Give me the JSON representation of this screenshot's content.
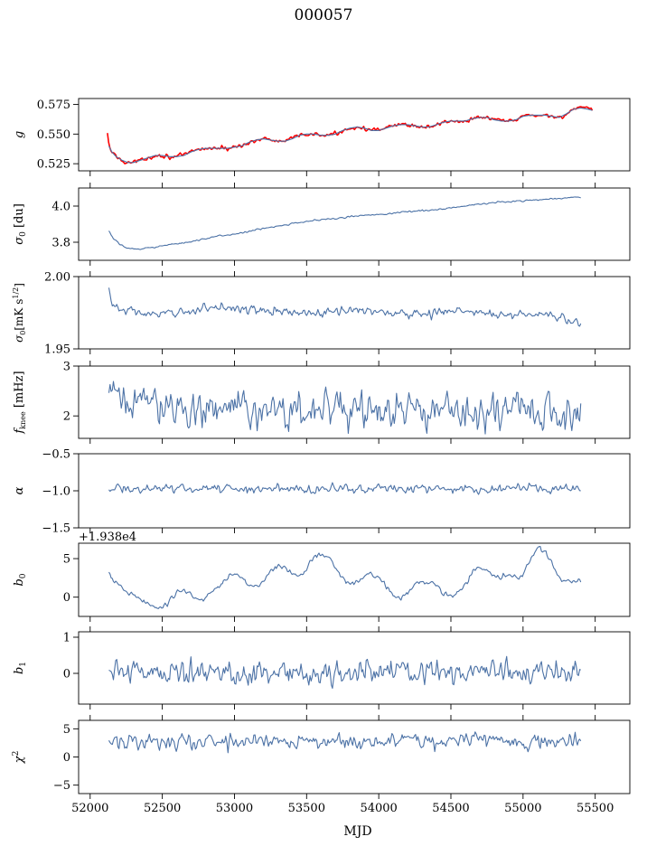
{
  "figure": {
    "title": "000057",
    "xlabel": "MJD",
    "series_color": "#4c72a6",
    "fit_color": "#ff0000"
  },
  "chart_data": [
    {
      "type": "line",
      "ylabel": "g",
      "xlim": [
        51920,
        55740
      ],
      "ylim": [
        0.519,
        0.58
      ],
      "xticks": [
        52000,
        52500,
        53000,
        53500,
        54000,
        54500,
        55000,
        55500
      ],
      "yticks": [
        0.525,
        0.55,
        0.575
      ],
      "ytick_labels": [
        "0.525",
        "0.550",
        "0.575"
      ],
      "series": [
        {
          "color": "#ff0000",
          "style": "noisy",
          "noise": 0.0012,
          "x": [
            52120,
            52130,
            52150,
            52180,
            52220,
            52260,
            52300,
            52350,
            52400,
            52450,
            52500,
            52550,
            52600,
            52650,
            52700,
            52750,
            52800,
            52850,
            52900,
            52950,
            53000,
            53050,
            53100,
            53150,
            53200,
            53250,
            53300,
            53350,
            53400,
            53450,
            53500,
            53550,
            53600,
            53650,
            53700,
            53750,
            53800,
            53850,
            53900,
            53950,
            54000,
            54050,
            54100,
            54150,
            54200,
            54250,
            54300,
            54350,
            54400,
            54450,
            54500,
            54550,
            54600,
            54650,
            54700,
            54750,
            54800,
            54850,
            54900,
            54950,
            55000,
            55050,
            55100,
            55150,
            55200,
            55250,
            55300,
            55350,
            55400,
            55450,
            55480
          ],
          "y": [
            0.55,
            0.54,
            0.535,
            0.531,
            0.528,
            0.526,
            0.526,
            0.528,
            0.53,
            0.532,
            0.532,
            0.531,
            0.531,
            0.532,
            0.535,
            0.537,
            0.538,
            0.538,
            0.538,
            0.538,
            0.539,
            0.54,
            0.543,
            0.545,
            0.546,
            0.545,
            0.544,
            0.544,
            0.546,
            0.549,
            0.55,
            0.55,
            0.549,
            0.549,
            0.55,
            0.553,
            0.555,
            0.556,
            0.555,
            0.553,
            0.553,
            0.555,
            0.557,
            0.558,
            0.558,
            0.557,
            0.556,
            0.556,
            0.558,
            0.56,
            0.561,
            0.561,
            0.561,
            0.563,
            0.564,
            0.564,
            0.562,
            0.561,
            0.561,
            0.562,
            0.565,
            0.566,
            0.566,
            0.566,
            0.565,
            0.564,
            0.567,
            0.571,
            0.572,
            0.571,
            0.57
          ]
        },
        {
          "color": "#4c72a6",
          "style": "smooth",
          "x": [
            52130,
            52150,
            52180,
            52220,
            52260,
            52300,
            52350,
            52400,
            52450,
            52500,
            52550,
            52600,
            52650,
            52700,
            52750,
            52800,
            52850,
            52900,
            52950,
            53000,
            53050,
            53100,
            53150,
            53200,
            53250,
            53300,
            53350,
            53400,
            53450,
            53500,
            53550,
            53600,
            53650,
            53700,
            53750,
            53800,
            53850,
            53900,
            53950,
            54000,
            54050,
            54100,
            54150,
            54200,
            54250,
            54300,
            54350,
            54400,
            54450,
            54500,
            54550,
            54600,
            54650,
            54700,
            54750,
            54800,
            54850,
            54900,
            54950,
            55000,
            55050,
            55100,
            55150,
            55200,
            55250,
            55300,
            55350,
            55400,
            55450,
            55480
          ],
          "y": [
            0.54,
            0.535,
            0.531,
            0.528,
            0.526,
            0.526,
            0.528,
            0.53,
            0.532,
            0.532,
            0.531,
            0.531,
            0.532,
            0.535,
            0.537,
            0.538,
            0.538,
            0.538,
            0.538,
            0.539,
            0.54,
            0.543,
            0.545,
            0.546,
            0.545,
            0.544,
            0.544,
            0.546,
            0.549,
            0.55,
            0.55,
            0.549,
            0.549,
            0.55,
            0.553,
            0.555,
            0.556,
            0.555,
            0.553,
            0.553,
            0.555,
            0.557,
            0.558,
            0.558,
            0.557,
            0.556,
            0.556,
            0.558,
            0.56,
            0.561,
            0.561,
            0.561,
            0.563,
            0.564,
            0.564,
            0.562,
            0.561,
            0.561,
            0.562,
            0.565,
            0.566,
            0.566,
            0.566,
            0.565,
            0.564,
            0.567,
            0.571,
            0.572,
            0.571,
            0.57
          ]
        }
      ]
    },
    {
      "type": "line",
      "ylabel": "σ0 [du]",
      "xlim": [
        51920,
        55740
      ],
      "ylim": [
        3.7,
        4.1
      ],
      "xticks": [
        52000,
        52500,
        53000,
        53500,
        54000,
        54500,
        55000,
        55500
      ],
      "yticks": [
        3.8,
        4.0
      ],
      "ytick_labels": [
        "3.8",
        "4.0"
      ],
      "series": [
        {
          "color": "#4c72a6",
          "style": "noisy",
          "noise": 0.003,
          "x": [
            52130,
            52160,
            52200,
            52250,
            52300,
            52350,
            52400,
            52500,
            52600,
            52700,
            52800,
            52900,
            53000,
            53100,
            53200,
            53300,
            53400,
            53500,
            53600,
            53700,
            53800,
            53900,
            54000,
            54100,
            54200,
            54300,
            54400,
            54500,
            54600,
            54700,
            54800,
            54900,
            55000,
            55100,
            55200,
            55300,
            55400
          ],
          "y": [
            3.86,
            3.82,
            3.79,
            3.77,
            3.762,
            3.762,
            3.77,
            3.78,
            3.79,
            3.805,
            3.82,
            3.835,
            3.845,
            3.86,
            3.875,
            3.89,
            3.905,
            3.915,
            3.925,
            3.93,
            3.94,
            3.95,
            3.955,
            3.96,
            3.97,
            3.975,
            3.98,
            3.99,
            4.0,
            4.01,
            4.02,
            4.025,
            4.03,
            4.035,
            4.04,
            4.045,
            4.05
          ]
        }
      ]
    },
    {
      "type": "line",
      "ylabel": "σ0[mK s^1/2]",
      "xlim": [
        51920,
        55740
      ],
      "ylim": [
        1.95,
        2.0
      ],
      "xticks": [
        52000,
        52500,
        53000,
        53500,
        54000,
        54500,
        55000,
        55500
      ],
      "yticks": [
        1.95,
        2.0
      ],
      "ytick_labels": [
        "1.95",
        "2.00"
      ],
      "series": [
        {
          "color": "#4c72a6",
          "style": "noisy",
          "noise": 0.0022,
          "x": [
            52130,
            52150,
            52200,
            52300,
            52400,
            52500,
            52600,
            52700,
            52800,
            52900,
            53000,
            53100,
            53200,
            53300,
            53400,
            53500,
            53600,
            53700,
            53800,
            53900,
            54000,
            54100,
            54200,
            54300,
            54400,
            54500,
            54600,
            54700,
            54800,
            54900,
            55000,
            55100,
            55200,
            55300,
            55350,
            55400
          ],
          "y": [
            1.992,
            1.981,
            1.977,
            1.976,
            1.974,
            1.973,
            1.975,
            1.977,
            1.978,
            1.979,
            1.979,
            1.977,
            1.976,
            1.976,
            1.975,
            1.975,
            1.974,
            1.976,
            1.977,
            1.977,
            1.976,
            1.975,
            1.974,
            1.975,
            1.975,
            1.976,
            1.976,
            1.975,
            1.974,
            1.974,
            1.974,
            1.974,
            1.973,
            1.97,
            1.968,
            1.967
          ]
        }
      ]
    },
    {
      "type": "line",
      "ylabel": "fknee [mHz]",
      "xlim": [
        51920,
        55740
      ],
      "ylim": [
        1.55,
        3.0
      ],
      "xticks": [
        52000,
        52500,
        53000,
        53500,
        54000,
        54500,
        55000,
        55500
      ],
      "yticks": [
        2,
        3
      ],
      "ytick_labels": [
        "2",
        "3"
      ],
      "series": [
        {
          "color": "#4c72a6",
          "style": "noisy",
          "noise": 0.26,
          "x": [
            52130,
            52300,
            52500,
            52700,
            52900,
            53100,
            53300,
            53500,
            53700,
            53900,
            54100,
            54300,
            54500,
            54700,
            54900,
            55100,
            55300,
            55400
          ],
          "y": [
            2.35,
            2.3,
            2.22,
            2.18,
            2.15,
            2.12,
            2.12,
            2.1,
            2.1,
            2.1,
            2.08,
            2.08,
            2.08,
            2.06,
            2.06,
            2.05,
            2.05,
            2.05
          ]
        }
      ]
    },
    {
      "type": "line",
      "ylabel": "α",
      "xlim": [
        51920,
        55740
      ],
      "ylim": [
        -1.5,
        -0.5
      ],
      "xticks": [
        52000,
        52500,
        53000,
        53500,
        54000,
        54500,
        55000,
        55500
      ],
      "yticks": [
        -1.5,
        -1.0,
        -0.5
      ],
      "ytick_labels": [
        "−1.5",
        "−1.0",
        "−0.5"
      ],
      "series": [
        {
          "color": "#4c72a6",
          "style": "noisy",
          "noise": 0.04,
          "x": [
            52130,
            52500,
            53000,
            53500,
            54000,
            54500,
            55000,
            55400
          ],
          "y": [
            -0.97,
            -0.97,
            -0.97,
            -0.97,
            -0.97,
            -0.97,
            -0.97,
            -0.97
          ]
        }
      ]
    },
    {
      "type": "line",
      "ylabel": "b0",
      "offset_label": "+1.938e4",
      "xlim": [
        51920,
        55740
      ],
      "ylim": [
        -2.5,
        7.0
      ],
      "xticks": [
        52000,
        52500,
        53000,
        53500,
        54000,
        54500,
        55000,
        55500
      ],
      "yticks": [
        0,
        5
      ],
      "ytick_labels": [
        "0",
        "5"
      ],
      "series": [
        {
          "color": "#4c72a6",
          "style": "noisy",
          "noise": 0.25,
          "x": [
            52130,
            52150,
            52200,
            52250,
            52300,
            52350,
            52400,
            52450,
            52500,
            52550,
            52600,
            52650,
            52700,
            52750,
            52800,
            52850,
            52900,
            52950,
            53000,
            53050,
            53100,
            53150,
            53200,
            53250,
            53300,
            53350,
            53400,
            53450,
            53500,
            53550,
            53600,
            53650,
            53700,
            53750,
            53800,
            53850,
            53900,
            53950,
            54000,
            54050,
            54100,
            54150,
            54200,
            54250,
            54300,
            54350,
            54400,
            54450,
            54500,
            54550,
            54600,
            54650,
            54700,
            54750,
            54800,
            54850,
            54900,
            54950,
            55000,
            55050,
            55100,
            55150,
            55200,
            55250,
            55300,
            55350,
            55400
          ],
          "y": [
            3.0,
            2.3,
            1.5,
            0.6,
            0.3,
            -0.3,
            -0.9,
            -1.3,
            -1.5,
            -0.6,
            0.6,
            0.9,
            0.4,
            -0.3,
            -0.2,
            0.8,
            1.5,
            2.3,
            3.1,
            2.6,
            1.6,
            1.4,
            2.0,
            3.2,
            4.2,
            4.0,
            3.0,
            2.6,
            3.6,
            5.0,
            5.7,
            5.1,
            3.8,
            2.7,
            1.7,
            2.0,
            2.9,
            3.3,
            2.6,
            1.4,
            0.3,
            -0.2,
            0.6,
            1.6,
            2.0,
            1.9,
            1.5,
            0.6,
            0.1,
            0.6,
            1.8,
            3.2,
            4.0,
            3.3,
            2.7,
            2.6,
            2.9,
            2.7,
            2.9,
            5.0,
            6.4,
            6.0,
            4.5,
            2.6,
            1.9,
            2.0,
            2.0
          ]
        }
      ]
    },
    {
      "type": "line",
      "ylabel": "b1",
      "xlim": [
        51920,
        55740
      ],
      "ylim": [
        -0.85,
        1.15
      ],
      "xticks": [
        52000,
        52500,
        53000,
        53500,
        54000,
        54500,
        55000,
        55500
      ],
      "yticks": [
        0,
        1
      ],
      "ytick_labels": [
        "0",
        "1"
      ],
      "series": [
        {
          "color": "#4c72a6",
          "style": "noisy",
          "noise": 0.23,
          "x": [
            52130,
            52500,
            53000,
            53500,
            54000,
            54500,
            55000,
            55400
          ],
          "y": [
            0.05,
            0.04,
            0.02,
            0.02,
            0.04,
            0.03,
            0.02,
            0.02
          ]
        }
      ]
    },
    {
      "type": "line",
      "ylabel": "χ²",
      "xlabel": "MJD",
      "xlim": [
        51920,
        55740
      ],
      "ylim": [
        -6.5,
        6.5
      ],
      "xticks": [
        52000,
        52500,
        53000,
        53500,
        54000,
        54500,
        55000,
        55500
      ],
      "xtick_labels": [
        "52000",
        "52500",
        "53000",
        "53500",
        "54000",
        "54500",
        "55000",
        "55500"
      ],
      "yticks": [
        -5,
        0,
        5
      ],
      "ytick_labels": [
        "−5",
        "0",
        "5"
      ],
      "series": [
        {
          "color": "#4c72a6",
          "style": "noisy",
          "noise": 1.0,
          "x": [
            52130,
            52300,
            52500,
            52700,
            52900,
            53100,
            53300,
            53500,
            53700,
            53900,
            54100,
            54300,
            54500,
            54700,
            54900,
            55100,
            55300,
            55400
          ],
          "y": [
            2.5,
            2.8,
            2.8,
            2.6,
            2.7,
            2.8,
            2.9,
            3.0,
            3.0,
            2.8,
            2.8,
            2.9,
            3.0,
            2.9,
            2.9,
            2.9,
            2.8,
            2.9
          ]
        }
      ]
    }
  ]
}
